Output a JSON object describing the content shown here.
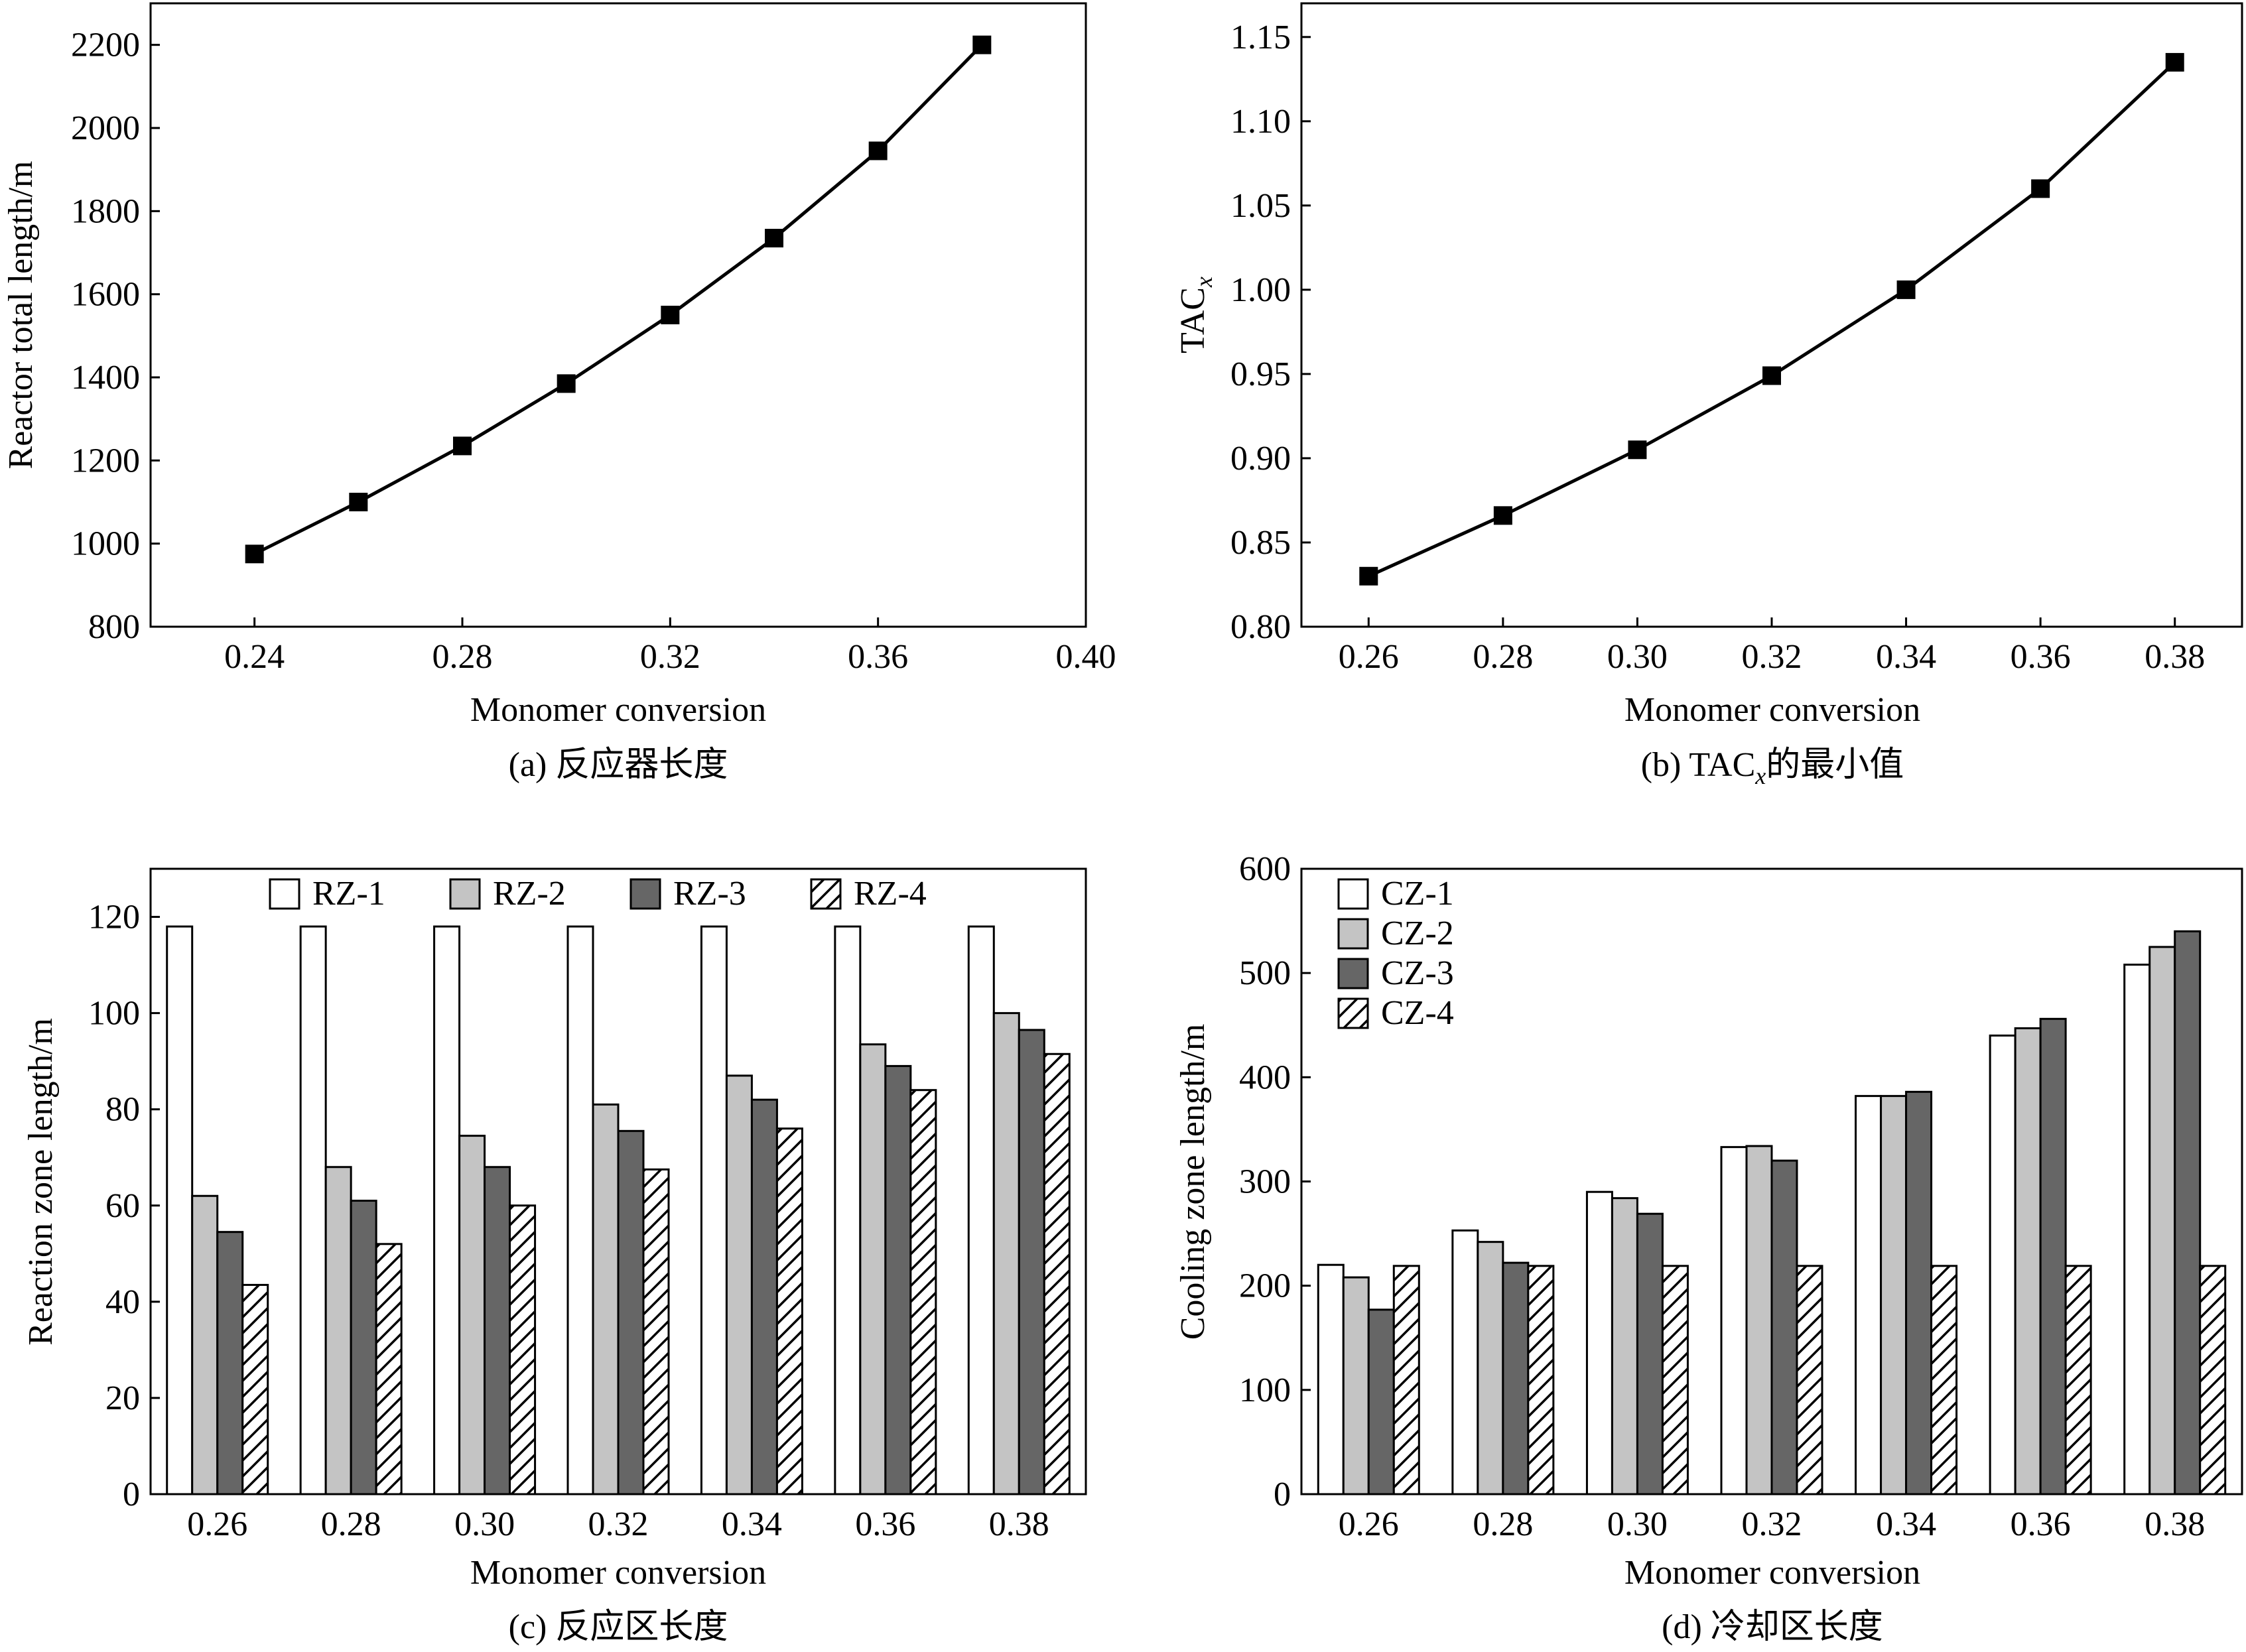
{
  "chart_data": [
    {
      "id": "a",
      "type": "line",
      "caption": "(a) 反应器长度",
      "xlabel": "Monomer conversion",
      "ylabel": "Reactor total length/m",
      "xlim": [
        0.22,
        0.4
      ],
      "ylim": [
        800,
        2300
      ],
      "xticks": [
        "0.24",
        "0.28",
        "0.32",
        "0.36",
        "0.40"
      ],
      "yticks": [
        "800",
        "1000",
        "1200",
        "1400",
        "1600",
        "1800",
        "2000",
        "2200"
      ],
      "marker": "square",
      "series": [
        {
          "x": [
            0.24,
            0.26,
            0.28,
            0.3,
            0.32,
            0.34,
            0.36,
            0.38
          ],
          "y": [
            975,
            1100,
            1235,
            1385,
            1550,
            1735,
            1945,
            2200
          ]
        }
      ]
    },
    {
      "id": "b",
      "type": "line",
      "caption_main": "(b) TAC",
      "caption_sub": "x",
      "caption_tail": "的最小值",
      "xlabel": "Monomer conversion",
      "ylabel_main": "TAC",
      "ylabel_sub": "x",
      "xlim": [
        0.25,
        0.39
      ],
      "ylim": [
        0.8,
        1.17
      ],
      "xticks": [
        "0.26",
        "0.28",
        "0.30",
        "0.32",
        "0.34",
        "0.36",
        "0.38"
      ],
      "yticks": [
        "0.80",
        "0.85",
        "0.90",
        "0.95",
        "1.00",
        "1.05",
        "1.10",
        "1.15"
      ],
      "marker": "square",
      "series": [
        {
          "x": [
            0.26,
            0.28,
            0.3,
            0.32,
            0.34,
            0.36,
            0.38
          ],
          "y": [
            0.83,
            0.866,
            0.905,
            0.949,
            1.0,
            1.06,
            1.135
          ]
        }
      ]
    },
    {
      "id": "c",
      "type": "bar",
      "caption": "(c) 反应区长度",
      "xlabel": "Monomer conversion",
      "ylabel": "Reaction zone length/m",
      "ylim": [
        0,
        130
      ],
      "yticks": [
        "0",
        "20",
        "40",
        "60",
        "80",
        "100",
        "120"
      ],
      "legend": "top",
      "categories": [
        "0.26",
        "0.28",
        "0.30",
        "0.32",
        "0.34",
        "0.36",
        "0.38"
      ],
      "series": [
        {
          "name": "RZ-1",
          "fill": "white",
          "values": [
            118,
            118,
            118,
            118,
            118,
            118,
            118
          ]
        },
        {
          "name": "RZ-2",
          "fill": "lightgray",
          "values": [
            62,
            68,
            74.5,
            81,
            87,
            93.5,
            100
          ]
        },
        {
          "name": "RZ-3",
          "fill": "darkgray",
          "values": [
            54.5,
            61,
            68,
            75.5,
            82,
            89,
            96.5
          ]
        },
        {
          "name": "RZ-4",
          "fill": "hatched",
          "values": [
            43.5,
            52,
            60,
            67.5,
            76,
            84,
            91.5
          ]
        }
      ]
    },
    {
      "id": "d",
      "type": "bar",
      "caption": "(d) 冷却区长度",
      "xlabel": "Monomer conversion",
      "ylabel": "Cooling zone length/m",
      "ylim": [
        0,
        600
      ],
      "yticks": [
        "0",
        "100",
        "200",
        "300",
        "400",
        "500",
        "600"
      ],
      "legend": "top-left",
      "categories": [
        "0.26",
        "0.28",
        "0.30",
        "0.32",
        "0.34",
        "0.36",
        "0.38"
      ],
      "series": [
        {
          "name": "CZ-1",
          "fill": "white",
          "values": [
            220,
            253,
            290,
            333,
            382,
            440,
            508
          ]
        },
        {
          "name": "CZ-2",
          "fill": "lightgray",
          "values": [
            208,
            242,
            284,
            334,
            382,
            447,
            525
          ]
        },
        {
          "name": "CZ-3",
          "fill": "darkgray",
          "values": [
            177,
            222,
            269,
            320,
            386,
            456,
            540
          ]
        },
        {
          "name": "CZ-4",
          "fill": "hatched",
          "values": [
            219,
            219,
            219,
            219,
            219,
            219,
            219
          ]
        }
      ]
    }
  ],
  "colors": {
    "white": "#ffffff",
    "lightgray": "#c4c4c4",
    "darkgray": "#666666",
    "line": "#000000"
  }
}
